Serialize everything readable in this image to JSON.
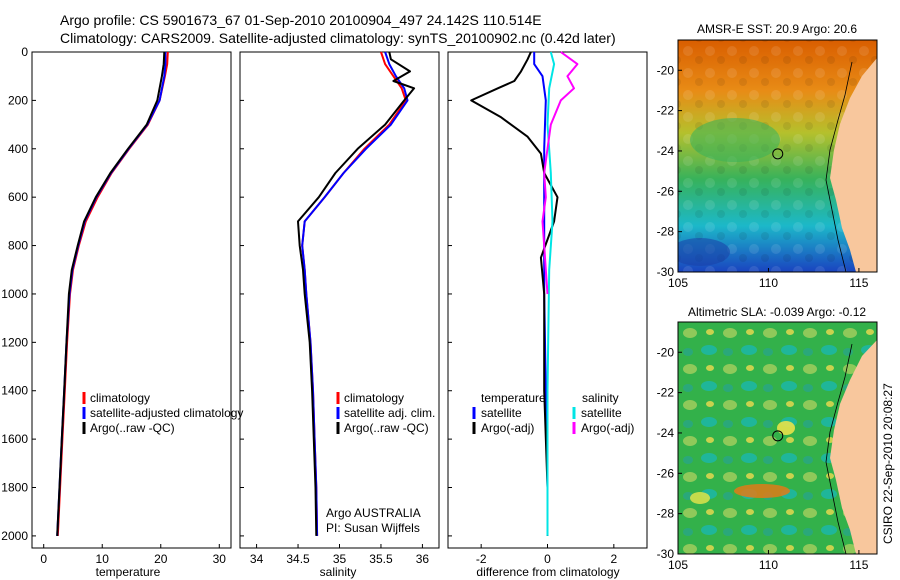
{
  "header": {
    "line1": "Argo profile: CS 5901673_67 01-Sep-2010 20100904_497 24.142S 110.514E",
    "line2": "Climatology: CARS2009. Satellite-adjusted climatology: synTS_20100902.nc (0.42d later)"
  },
  "credit": "CSIRO 22-Sep-2010 20:08:27",
  "colors": {
    "climatology": "#ff0000",
    "satellite": "#0000ff",
    "argo": "#000000",
    "sal_satellite": "#00e5e5",
    "sal_argo": "#ff00ff"
  },
  "chart_data": [
    {
      "type": "line",
      "panel": "temperature",
      "xlabel": "temperature",
      "xlim": [
        -2,
        32
      ],
      "ylim": [
        2050,
        0
      ],
      "y_inverted": true,
      "xticks": [
        "0",
        "10",
        "20",
        "30"
      ],
      "yticks": [
        "0",
        "200",
        "400",
        "600",
        "800",
        "1000",
        "1200",
        "1400",
        "1600",
        "1800",
        "2000"
      ],
      "legend": [
        "climatology",
        "satellite-adjusted climatology",
        "Argo(..raw -QC)"
      ],
      "series": [
        {
          "name": "climatology",
          "color": "#ff0000",
          "points": [
            [
              21.2,
              0
            ],
            [
              21.1,
              50
            ],
            [
              20.7,
              100
            ],
            [
              19.8,
              200
            ],
            [
              17.8,
              300
            ],
            [
              14.6,
              400
            ],
            [
              11.6,
              500
            ],
            [
              9.2,
              600
            ],
            [
              7.2,
              700
            ],
            [
              6.0,
              800
            ],
            [
              5.0,
              900
            ],
            [
              4.5,
              1000
            ],
            [
              4.0,
              1200
            ],
            [
              3.6,
              1400
            ],
            [
              3.2,
              1600
            ],
            [
              2.8,
              1800
            ],
            [
              2.4,
              2000
            ]
          ]
        },
        {
          "name": "satellite-adjusted climatology",
          "color": "#0000ff",
          "points": [
            [
              20.8,
              0
            ],
            [
              20.8,
              50
            ],
            [
              20.6,
              100
            ],
            [
              19.8,
              200
            ],
            [
              17.7,
              300
            ],
            [
              14.5,
              400
            ],
            [
              11.5,
              500
            ],
            [
              9.0,
              600
            ],
            [
              7.0,
              700
            ],
            [
              5.9,
              800
            ],
            [
              4.9,
              900
            ],
            [
              4.4,
              1000
            ],
            [
              3.9,
              1200
            ],
            [
              3.5,
              1400
            ],
            [
              3.1,
              1600
            ],
            [
              2.7,
              1800
            ],
            [
              2.3,
              2000
            ]
          ]
        },
        {
          "name": "Argo(..raw -QC)",
          "color": "#000000",
          "points": [
            [
              20.6,
              0
            ],
            [
              20.5,
              50
            ],
            [
              20.2,
              100
            ],
            [
              19.4,
              200
            ],
            [
              17.6,
              300
            ],
            [
              14.4,
              400
            ],
            [
              11.4,
              500
            ],
            [
              8.9,
              600
            ],
            [
              6.9,
              700
            ],
            [
              5.8,
              800
            ],
            [
              4.8,
              900
            ],
            [
              4.3,
              1000
            ],
            [
              3.9,
              1200
            ],
            [
              3.5,
              1400
            ],
            [
              3.1,
              1600
            ],
            [
              2.7,
              1800
            ],
            [
              2.3,
              2000
            ]
          ]
        }
      ]
    },
    {
      "type": "line",
      "panel": "salinity",
      "xlabel": "salinity",
      "xlim": [
        33.8,
        36.2
      ],
      "ylim": [
        2050,
        0
      ],
      "y_inverted": true,
      "xticks": [
        "34",
        "34.5",
        "35",
        "35.5",
        "36"
      ],
      "legend": [
        "climatology",
        "satellite adj. clim.",
        "Argo(..raw -QC)"
      ],
      "annotation": [
        "Argo AUSTRALIA",
        "PI: Susan Wijffels"
      ],
      "series": [
        {
          "name": "climatology",
          "color": "#ff0000",
          "points": [
            [
              35.5,
              0
            ],
            [
              35.55,
              50
            ],
            [
              35.65,
              100
            ],
            [
              35.75,
              150
            ],
            [
              35.8,
              200
            ],
            [
              35.6,
              300
            ],
            [
              35.3,
              400
            ],
            [
              35.05,
              500
            ],
            [
              34.82,
              600
            ],
            [
              34.58,
              700
            ],
            [
              34.55,
              800
            ],
            [
              34.58,
              900
            ],
            [
              34.6,
              1000
            ],
            [
              34.65,
              1200
            ],
            [
              34.68,
              1400
            ],
            [
              34.7,
              1600
            ],
            [
              34.72,
              1800
            ],
            [
              34.73,
              2000
            ]
          ]
        },
        {
          "name": "satellite adj. clim.",
          "color": "#0000ff",
          "points": [
            [
              35.55,
              0
            ],
            [
              35.6,
              50
            ],
            [
              35.68,
              100
            ],
            [
              35.78,
              150
            ],
            [
              35.82,
              200
            ],
            [
              35.62,
              300
            ],
            [
              35.32,
              400
            ],
            [
              35.05,
              500
            ],
            [
              34.82,
              600
            ],
            [
              34.58,
              700
            ],
            [
              34.55,
              800
            ],
            [
              34.58,
              900
            ],
            [
              34.6,
              1000
            ],
            [
              34.65,
              1200
            ],
            [
              34.68,
              1400
            ],
            [
              34.7,
              1600
            ],
            [
              34.72,
              1800
            ],
            [
              34.73,
              2000
            ]
          ]
        },
        {
          "name": "Argo(..raw -QC)",
          "color": "#000000",
          "points": [
            [
              35.6,
              0
            ],
            [
              35.62,
              30
            ],
            [
              35.85,
              80
            ],
            [
              35.65,
              120
            ],
            [
              35.9,
              150
            ],
            [
              35.78,
              200
            ],
            [
              35.55,
              300
            ],
            [
              35.22,
              400
            ],
            [
              34.95,
              500
            ],
            [
              34.75,
              600
            ],
            [
              34.5,
              700
            ],
            [
              34.52,
              800
            ],
            [
              34.56,
              900
            ],
            [
              34.58,
              1000
            ],
            [
              34.64,
              1200
            ],
            [
              34.67,
              1400
            ],
            [
              34.69,
              1600
            ],
            [
              34.71,
              1800
            ],
            [
              34.72,
              2000
            ]
          ]
        }
      ]
    },
    {
      "type": "line",
      "panel": "difference",
      "xlabel": "difference from climatology",
      "xlim": [
        -3,
        3
      ],
      "ylim": [
        2050,
        0
      ],
      "y_inverted": true,
      "xticks": [
        "-2",
        "0",
        "2"
      ],
      "legend_groups": [
        {
          "title": "temperature",
          "items": [
            "satellite",
            "Argo(-adj)"
          ]
        },
        {
          "title": "salinity",
          "items": [
            "satellite",
            "Argo(-adj)"
          ]
        }
      ],
      "series": [
        {
          "name": "temperature satellite",
          "color": "#0000ff",
          "points": [
            [
              -0.4,
              0
            ],
            [
              -0.4,
              50
            ],
            [
              -0.15,
              100
            ],
            [
              -0.05,
              200
            ],
            [
              -0.1,
              400
            ],
            [
              -0.1,
              600
            ],
            [
              -0.1,
              800
            ],
            [
              -0.1,
              1000
            ],
            [
              -0.05,
              1400
            ],
            [
              0,
              1800
            ],
            [
              0,
              2000
            ]
          ]
        },
        {
          "name": "temperature Argo(-adj)",
          "color": "#000000",
          "points": [
            [
              -0.5,
              0
            ],
            [
              -0.6,
              30
            ],
            [
              -0.8,
              80
            ],
            [
              -1.0,
              120
            ],
            [
              -1.5,
              150
            ],
            [
              -2.3,
              200
            ],
            [
              -1.4,
              270
            ],
            [
              -0.6,
              350
            ],
            [
              -0.2,
              420
            ],
            [
              -0.1,
              500
            ],
            [
              0.3,
              600
            ],
            [
              0.2,
              700
            ],
            [
              -0.2,
              850
            ],
            [
              -0.1,
              1000
            ],
            [
              -0.1,
              1400
            ],
            [
              0,
              1800
            ],
            [
              0,
              2000
            ]
          ]
        },
        {
          "name": "salinity satellite",
          "color": "#00e5e5",
          "points": [
            [
              0.1,
              0
            ],
            [
              0.2,
              50
            ],
            [
              0.05,
              150
            ],
            [
              0,
              300
            ],
            [
              0.1,
              500
            ],
            [
              0.15,
              700
            ],
            [
              0.05,
              900
            ],
            [
              0,
              1400
            ],
            [
              0,
              2000
            ]
          ]
        },
        {
          "name": "salinity Argo(-adj)",
          "color": "#ff00ff",
          "points": [
            [
              0.4,
              0
            ],
            [
              0.9,
              50
            ],
            [
              0.6,
              100
            ],
            [
              0.8,
              150
            ],
            [
              0.4,
              200
            ],
            [
              0.1,
              300
            ],
            [
              0,
              400
            ],
            [
              -0.1,
              500
            ],
            [
              -0.05,
              600
            ],
            [
              -0.15,
              700
            ],
            [
              -0.1,
              800
            ],
            [
              -0.05,
              900
            ],
            [
              0,
              1000
            ]
          ]
        }
      ]
    }
  ],
  "maps": [
    {
      "title": "AMSR-E SST: 20.9 Argo: 20.6",
      "xticks": [
        "105",
        "110",
        "115"
      ],
      "yticks": [
        "-20",
        "-22",
        "-24",
        "-26",
        "-28",
        "-30"
      ],
      "lon": [
        105,
        116
      ],
      "lat": [
        -18.5,
        -30
      ],
      "argo_position": [
        110.514,
        -24.142
      ],
      "shading": "warm-to-cool"
    },
    {
      "title": "Altimetric SLA: -0.039 Argo: -0.12",
      "xticks": [
        "105",
        "110",
        "115"
      ],
      "yticks": [
        "-20",
        "-22",
        "-24",
        "-26",
        "-28",
        "-30"
      ],
      "lon": [
        105,
        116
      ],
      "lat": [
        -18.5,
        -30
      ],
      "argo_position": [
        110.514,
        -24.142
      ],
      "shading": "green-mottled"
    }
  ]
}
